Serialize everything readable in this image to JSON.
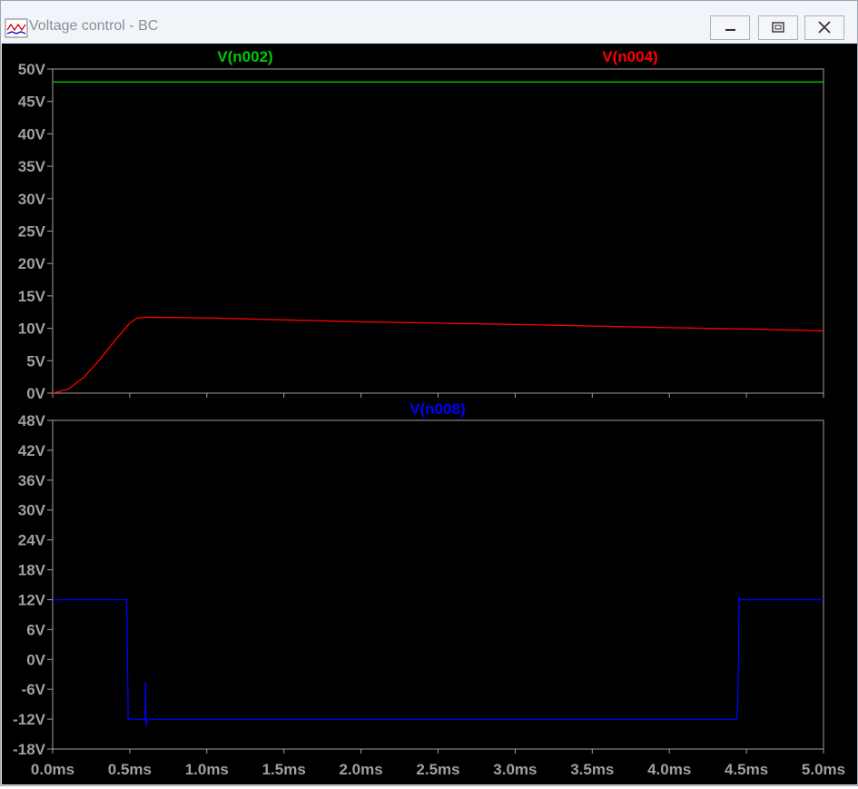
{
  "window": {
    "title": "Voltage control - BC",
    "icon": "waveform-viewer-icon",
    "controls": [
      "minimize-icon",
      "maximize-icon",
      "close-icon"
    ]
  },
  "colors": {
    "background": "#000000",
    "axis": "#a0a0a0",
    "tick_label": "#a0a0a0",
    "v_n002": "#00c800",
    "v_n004": "#ff0000",
    "v_n008": "#0000ff"
  },
  "chart_data": [
    {
      "type": "line",
      "title": "",
      "xlabel": "",
      "ylabel": "",
      "xlim": [
        0,
        5.0
      ],
      "ylim": [
        0,
        50
      ],
      "x_unit": "ms",
      "grid": false,
      "x_ticks": [
        "0.0ms",
        "0.5ms",
        "1.0ms",
        "1.5ms",
        "2.0ms",
        "2.5ms",
        "3.0ms",
        "3.5ms",
        "4.0ms",
        "4.5ms",
        "5.0ms"
      ],
      "y_ticks": [
        "0V",
        "5V",
        "10V",
        "15V",
        "20V",
        "25V",
        "30V",
        "35V",
        "40V",
        "45V",
        "50V"
      ],
      "y_tick_values": [
        0,
        5,
        10,
        15,
        20,
        25,
        30,
        35,
        40,
        45,
        50
      ],
      "series": [
        {
          "name": "V(n002)",
          "color": "#00c800",
          "x": [
            0.0,
            5.0
          ],
          "y": [
            48,
            48
          ]
        },
        {
          "name": "V(n004)",
          "color": "#ff0000",
          "x": [
            0.0,
            0.1,
            0.2,
            0.3,
            0.4,
            0.5,
            0.55,
            0.6,
            1.0,
            2.0,
            3.0,
            4.0,
            4.5,
            5.0
          ],
          "y": [
            0.0,
            0.6,
            2.4,
            5.0,
            8.0,
            10.8,
            11.6,
            11.7,
            11.6,
            11.0,
            10.6,
            10.1,
            9.9,
            9.6
          ]
        }
      ]
    },
    {
      "type": "line",
      "title": "",
      "xlabel": "",
      "ylabel": "",
      "xlim": [
        0,
        5.0
      ],
      "ylim": [
        -18,
        48
      ],
      "x_unit": "ms",
      "grid": false,
      "x_ticks": [
        "0.0ms",
        "0.5ms",
        "1.0ms",
        "1.5ms",
        "2.0ms",
        "2.5ms",
        "3.0ms",
        "3.5ms",
        "4.0ms",
        "4.5ms",
        "5.0ms"
      ],
      "y_ticks": [
        "-18V",
        "-12V",
        "-6V",
        "0V",
        "6V",
        "12V",
        "18V",
        "24V",
        "30V",
        "36V",
        "42V",
        "48V"
      ],
      "y_tick_values": [
        -18,
        -12,
        -6,
        0,
        6,
        12,
        18,
        24,
        30,
        36,
        42,
        48
      ],
      "series": [
        {
          "name": "V(n008)",
          "color": "#0000ff",
          "x": [
            0.0,
            0.48,
            0.49,
            0.6,
            0.602,
            0.605,
            0.607,
            0.61,
            4.44,
            4.45,
            4.451,
            4.46,
            5.0
          ],
          "y": [
            12.0,
            12.0,
            -12.0,
            -12.0,
            -4.5,
            -12.5,
            -13.5,
            -12.0,
            -12.0,
            0.0,
            12.5,
            12.0,
            12.0
          ]
        }
      ]
    }
  ]
}
